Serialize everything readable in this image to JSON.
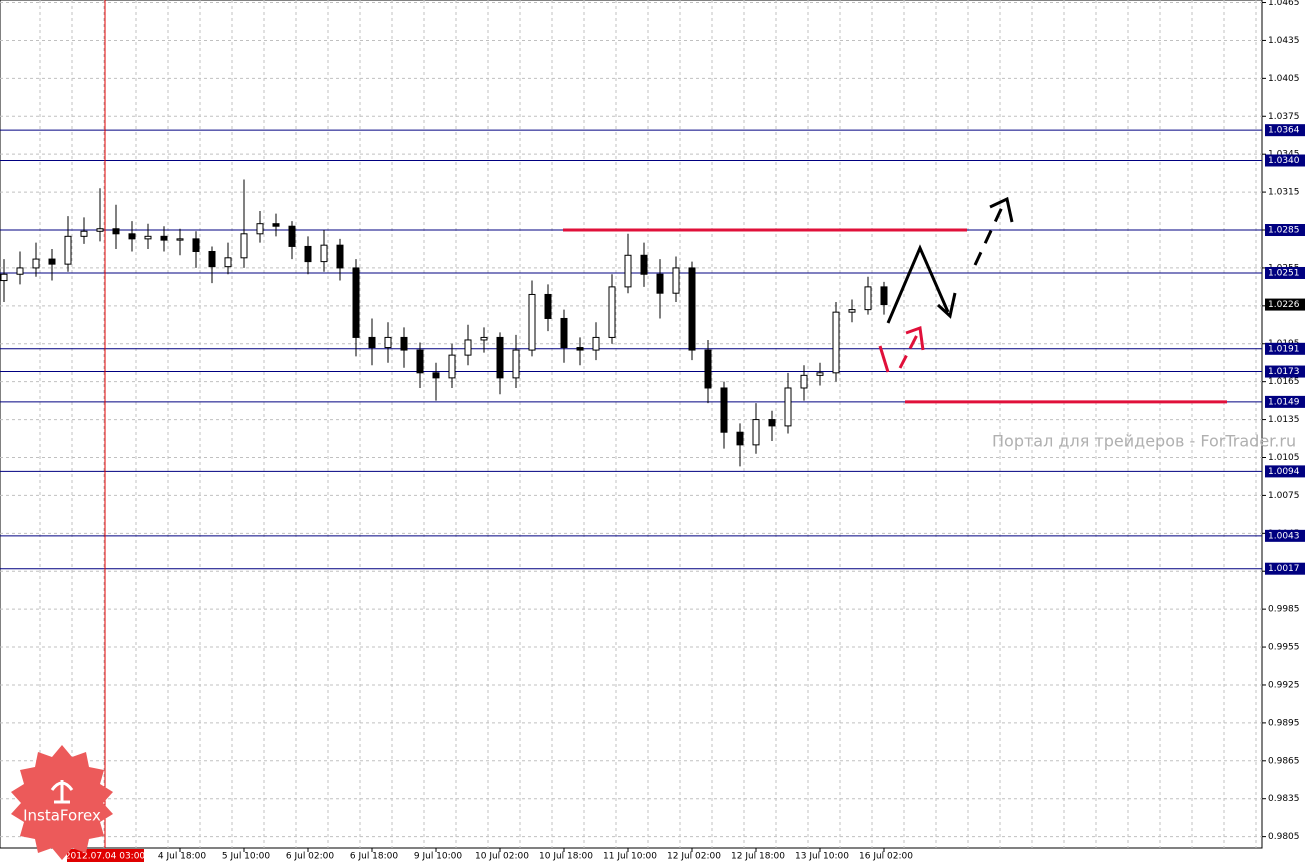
{
  "chart_data": {
    "type": "candlestick",
    "categories": [
      null,
      null,
      null,
      null,
      null,
      null,
      null,
      null,
      null,
      null,
      null,
      "4 Jul 18:00",
      null,
      null,
      null,
      "5 Jul 10:00",
      null,
      null,
      null,
      "6 Jul 02:00",
      null,
      null,
      null,
      "6 Jul 18:00",
      null,
      null,
      null,
      "9 Jul 10:00",
      null,
      null,
      null,
      "10 Jul 02:00",
      null,
      null,
      null,
      "10 Jul 18:00",
      null,
      null,
      null,
      "11 Jul 10:00",
      null,
      null,
      null,
      "12 Jul 02:00",
      null,
      null,
      null,
      "12 Jul 18:00",
      null,
      null,
      null,
      "13 Jul 10:00",
      null,
      null,
      null,
      "16 Jul 02:00"
    ],
    "open": [
      1.0245,
      1.025,
      1.0255,
      1.0262,
      1.0258,
      1.028,
      1.0284,
      1.0286,
      1.0282,
      1.0278,
      1.028,
      1.0277,
      1.0278,
      1.0268,
      1.0256,
      1.0263,
      1.0282,
      1.029,
      1.0288,
      1.0272,
      1.026,
      1.0273,
      1.0255,
      1.02,
      1.0192,
      1.02,
      1.019,
      1.0172,
      1.0168,
      1.0186,
      1.0198,
      1.02,
      1.0168,
      1.019,
      1.0234,
      1.0215,
      1.0192,
      1.019,
      1.02,
      1.024,
      1.0265,
      1.025,
      1.0235,
      1.0255,
      1.019,
      1.016,
      1.0125,
      1.0115,
      1.0135,
      1.013,
      1.016,
      1.017,
      1.0172,
      1.022,
      1.0222,
      1.024
    ],
    "high": [
      1.0262,
      1.0268,
      1.0275,
      1.027,
      1.0296,
      1.0295,
      1.0318,
      1.0305,
      1.0292,
      1.029,
      1.0288,
      1.0286,
      1.0284,
      1.0272,
      1.0275,
      1.0325,
      1.03,
      1.0298,
      1.0292,
      1.028,
      1.0285,
      1.0278,
      1.0262,
      1.0215,
      1.0212,
      1.0208,
      1.0196,
      1.018,
      1.0195,
      1.021,
      1.0208,
      1.0204,
      1.0202,
      1.0245,
      1.0242,
      1.0222,
      1.02,
      1.0212,
      1.025,
      1.0282,
      1.0275,
      1.0262,
      1.0264,
      1.026,
      1.0198,
      1.0165,
      1.0132,
      1.0148,
      1.0142,
      1.0172,
      1.0178,
      1.018,
      1.0228,
      1.023,
      1.0248,
      1.0244
    ],
    "low": [
      1.0228,
      1.0242,
      1.0248,
      1.0245,
      1.0252,
      1.0274,
      1.0276,
      1.027,
      1.0268,
      1.027,
      1.0268,
      1.0265,
      1.0255,
      1.0243,
      1.025,
      1.0255,
      1.0275,
      1.028,
      1.0262,
      1.025,
      1.0252,
      1.0245,
      1.0185,
      1.0178,
      1.018,
      1.0176,
      1.016,
      1.015,
      1.016,
      1.0178,
      1.0188,
      1.0155,
      1.016,
      1.0185,
      1.0205,
      1.018,
      1.0178,
      1.0182,
      1.0195,
      1.0235,
      1.024,
      1.0215,
      1.0228,
      1.0182,
      1.0148,
      1.0112,
      1.0098,
      1.0108,
      1.0118,
      1.0124,
      1.015,
      1.0162,
      1.0165,
      1.0212,
      1.0218,
      1.0218
    ],
    "close": [
      1.025,
      1.0255,
      1.0262,
      1.0258,
      1.028,
      1.0284,
      1.0286,
      1.0282,
      1.0278,
      1.028,
      1.0277,
      1.0278,
      1.0268,
      1.0256,
      1.0263,
      1.0282,
      1.029,
      1.0288,
      1.0272,
      1.026,
      1.0273,
      1.0255,
      1.02,
      1.0192,
      1.02,
      1.019,
      1.0172,
      1.0168,
      1.0186,
      1.0198,
      1.02,
      1.0168,
      1.019,
      1.0234,
      1.0215,
      1.0192,
      1.019,
      1.02,
      1.024,
      1.0265,
      1.025,
      1.0235,
      1.0255,
      1.019,
      1.016,
      1.0125,
      1.0115,
      1.0135,
      1.013,
      1.016,
      1.017,
      1.0172,
      1.022,
      1.0222,
      1.024,
      1.0226
    ],
    "color": "#000000",
    "ylim": [
      0.9796,
      1.0467
    ],
    "yticks": [
      1.0465,
      1.0435,
      1.0405,
      1.0375,
      1.0345,
      1.0315,
      1.0285,
      1.0255,
      1.0225,
      1.0195,
      1.0165,
      1.0135,
      1.0105,
      1.0075,
      1.0045,
      1.0015,
      0.9985,
      0.9955,
      0.9925,
      0.9895,
      0.9865,
      0.9835,
      0.9805
    ],
    "grid": true,
    "levels": [
      1.0364,
      {
        "value": 1.034,
        "label": "1.0340"
      },
      1.0285,
      1.0251,
      1.0191,
      1.0173,
      1.0149,
      1.0094,
      1.0043,
      1.0017
    ],
    "level_color": "#000080",
    "last_price": 1.0226,
    "marked_levels": [
      1.0285,
      1.0149
    ],
    "marked_color": "#e0103a",
    "crosshair_label": "2012.07.04 03:00",
    "watermark": "Портал для трейдеров - ForTrader.ru",
    "logo": "InstaForex"
  }
}
